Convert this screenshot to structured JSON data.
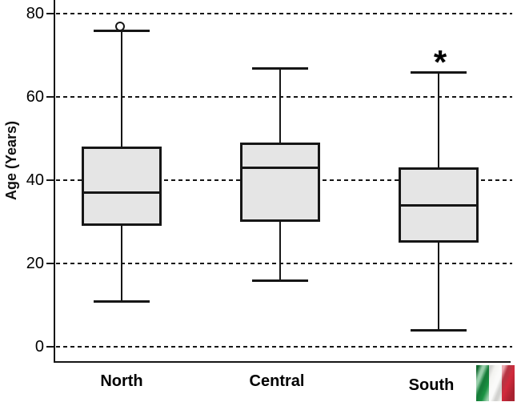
{
  "chart_data": {
    "type": "boxplot",
    "title": "",
    "xlabel": "",
    "ylabel": "Age (Years)",
    "yticks": [
      0,
      20,
      40,
      60,
      80
    ],
    "ylim": [
      -4,
      84
    ],
    "grid": "horizontal-dashed",
    "legend": "none",
    "categories": [
      "North",
      "Central",
      "South"
    ],
    "series": [
      {
        "name": "North",
        "whisker_low": 11,
        "q1": 29,
        "median": 37,
        "q3": 48,
        "whisker_high": 76,
        "outliers": [
          77
        ],
        "annotation": ""
      },
      {
        "name": "Central",
        "whisker_low": 16,
        "q1": 30,
        "median": 43,
        "q3": 49,
        "whisker_high": 67,
        "outliers": [],
        "annotation": ""
      },
      {
        "name": "South",
        "whisker_low": 4,
        "q1": 25,
        "median": 34,
        "q3": 43,
        "whisker_high": 66,
        "outliers": [],
        "annotation": "*"
      }
    ]
  },
  "icons": {
    "flag": "italy-flag"
  },
  "colors": {
    "line": "#161616",
    "box_fill": "#e5e5e5",
    "flag_green": "#1a9343",
    "flag_white": "#f3f3f0",
    "flag_red": "#d22a3c"
  }
}
